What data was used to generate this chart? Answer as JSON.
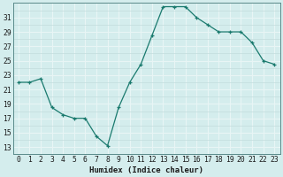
{
  "x": [
    0,
    1,
    2,
    3,
    4,
    5,
    6,
    7,
    8,
    9,
    10,
    11,
    12,
    13,
    14,
    15,
    16,
    17,
    18,
    19,
    20,
    21,
    22,
    23
  ],
  "y": [
    22.0,
    22.0,
    22.5,
    18.5,
    17.5,
    17.0,
    17.0,
    14.5,
    13.2,
    18.5,
    22.0,
    24.5,
    28.5,
    32.5,
    32.5,
    32.5,
    31.0,
    30.0,
    29.0,
    29.0,
    29.0,
    27.5,
    25.0,
    24.5
  ],
  "line_color": "#1a7a6e",
  "marker": "+",
  "marker_size": 3.5,
  "linewidth": 0.9,
  "xlabel": "Humidex (Indice chaleur)",
  "ylim": [
    12,
    33
  ],
  "xlim": [
    -0.5,
    23.5
  ],
  "yticks": [
    13,
    15,
    17,
    19,
    21,
    23,
    25,
    27,
    29,
    31
  ],
  "xtick_labels": [
    "0",
    "1",
    "2",
    "3",
    "4",
    "5",
    "6",
    "7",
    "8",
    "9",
    "10",
    "11",
    "12",
    "13",
    "14",
    "15",
    "16",
    "17",
    "18",
    "19",
    "20",
    "21",
    "22",
    "23"
  ],
  "bg_color": "#d4eded",
  "grid_color": "#c2dcdc",
  "grid_white_color": "#e8f5f5",
  "font_size": 5.8,
  "xlabel_fontsize": 6.5
}
